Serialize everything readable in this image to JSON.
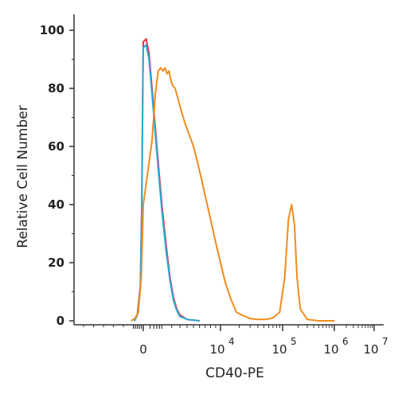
{
  "chart_data": {
    "type": "line",
    "title": "",
    "xlabel": "CD40-PE",
    "ylabel": "Relative Cell Number",
    "xscale": "biexponential",
    "ylim": [
      0,
      100
    ],
    "yticks": [
      0,
      20,
      40,
      60,
      80,
      100
    ],
    "xtick_labels": [
      {
        "base": "0",
        "exp": ""
      },
      {
        "base": "10",
        "exp": "4"
      },
      {
        "base": "10",
        "exp": "5"
      },
      {
        "base": "10",
        "exp": "6"
      },
      {
        "base": "10",
        "exp": "7"
      }
    ],
    "grid": false,
    "legend": "none",
    "series": [
      {
        "color": "#e8323c",
        "x": [
          -900,
          -600,
          -300,
          -150,
          -50,
          0,
          50,
          150,
          300,
          600,
          1000,
          1400,
          1800,
          2200,
          2600,
          3000,
          4000,
          6000
        ],
        "y": [
          0,
          2,
          12,
          40,
          82,
          96,
          97,
          92,
          80,
          60,
          40,
          26,
          15,
          8,
          4,
          2,
          0.5,
          0
        ]
      },
      {
        "color": "#29a9d9",
        "x": [
          -900,
          -600,
          -300,
          -150,
          -50,
          0,
          50,
          150,
          300,
          600,
          1000,
          1400,
          1800,
          2200,
          2600,
          3000,
          4000,
          6000
        ],
        "y": [
          0,
          2,
          11,
          38,
          80,
          94,
          95,
          90,
          78,
          58,
          38,
          24,
          14,
          7,
          3.5,
          1.5,
          0.5,
          0
        ]
      },
      {
        "color": "#f08c1e",
        "x": [
          -1200,
          -800,
          -500,
          -200,
          0,
          300,
          500,
          700,
          900,
          1100,
          1300,
          1500,
          1700,
          1900,
          2100,
          2400,
          2800,
          3200,
          3700,
          4200,
          5000,
          5600,
          6200,
          7000,
          8000,
          9000,
          10000,
          12000,
          15000,
          18000,
          22000,
          30000,
          40000,
          55000,
          70000,
          90000,
          110000,
          130000,
          150000,
          170000,
          190000,
          220000,
          300000,
          500000,
          1000000
        ],
        "y": [
          0,
          1,
          3,
          15,
          40,
          62,
          78,
          86,
          87,
          86,
          87,
          85,
          86,
          83,
          81,
          80,
          76,
          72,
          68,
          65,
          60,
          55,
          50,
          43,
          35,
          27,
          20,
          13,
          7,
          3,
          2,
          0.8,
          0.5,
          0.5,
          1,
          3,
          15,
          35,
          40,
          33,
          15,
          4,
          0.5,
          0,
          0
        ]
      }
    ]
  }
}
